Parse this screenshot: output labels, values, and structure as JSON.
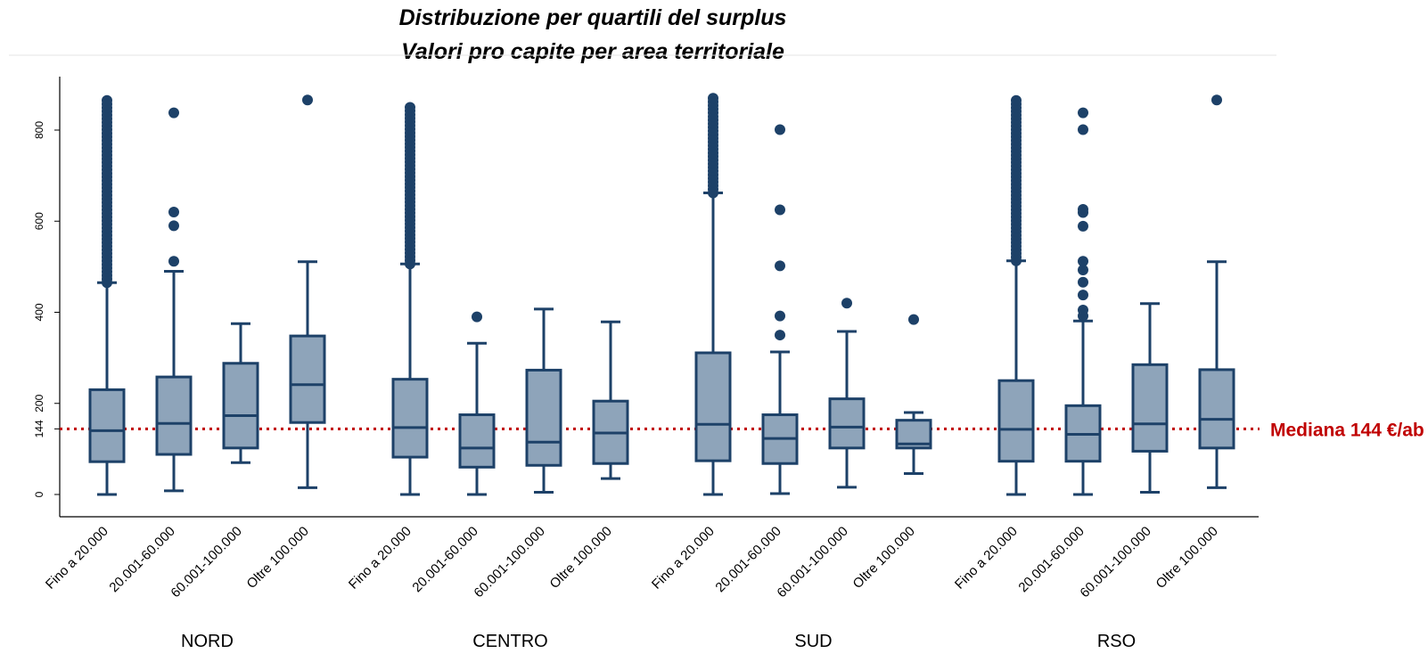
{
  "chart_data": {
    "type": "boxplot",
    "title": "Distribuzione per quartili del surplus",
    "subtitle": "Valori pro capite per area territoriale",
    "y_ticks": [
      0,
      144,
      200,
      400,
      600,
      800
    ],
    "ylim": [
      0,
      870
    ],
    "reference_line": {
      "value": 144,
      "label": "Mediana 144 €/ab"
    },
    "colors": {
      "box_fill": "#8ea4ba",
      "box_stroke": "#1d4168",
      "outlier": "#1d4168",
      "reference": "#c00000"
    },
    "groups": [
      {
        "name": "NORD",
        "boxes": [
          {
            "category": "Fino a 20.000",
            "whisker_low": 0,
            "q1": 72,
            "median": 140,
            "q3": 230,
            "whisker_high": 465,
            "outliers_dense_range": [
              465,
              870
            ],
            "outliers": []
          },
          {
            "category": "20.001-60.000",
            "whisker_low": 8,
            "q1": 88,
            "median": 156,
            "q3": 258,
            "whisker_high": 490,
            "outliers": [
              512,
              590,
              620,
              838
            ]
          },
          {
            "category": "60.001-100.000",
            "whisker_low": 70,
            "q1": 102,
            "median": 173,
            "q3": 288,
            "whisker_high": 375,
            "outliers": []
          },
          {
            "category": "Oltre 100.000",
            "whisker_low": 15,
            "q1": 158,
            "median": 241,
            "q3": 348,
            "whisker_high": 511,
            "outliers": [
              866
            ]
          }
        ]
      },
      {
        "name": "CENTRO",
        "boxes": [
          {
            "category": "Fino a 20.000",
            "whisker_low": 0,
            "q1": 82,
            "median": 147,
            "q3": 253,
            "whisker_high": 506,
            "outliers_dense_range": [
              506,
              850
            ],
            "outliers": []
          },
          {
            "category": "20.001-60.000",
            "whisker_low": 0,
            "q1": 60,
            "median": 102,
            "q3": 175,
            "whisker_high": 332,
            "outliers": [
              390
            ]
          },
          {
            "category": "60.001-100.000",
            "whisker_low": 5,
            "q1": 64,
            "median": 115,
            "q3": 273,
            "whisker_high": 407,
            "outliers": []
          },
          {
            "category": "Oltre 100.000",
            "whisker_low": 35,
            "q1": 68,
            "median": 135,
            "q3": 205,
            "whisker_high": 379,
            "outliers": []
          }
        ]
      },
      {
        "name": "SUD",
        "boxes": [
          {
            "category": "Fino a 20.000",
            "whisker_low": 0,
            "q1": 74,
            "median": 154,
            "q3": 311,
            "whisker_high": 662,
            "outliers_dense_range": [
              662,
              870
            ],
            "outliers": []
          },
          {
            "category": "20.001-60.000",
            "whisker_low": 2,
            "q1": 68,
            "median": 123,
            "q3": 175,
            "whisker_high": 313,
            "outliers": [
              350,
              392,
              502,
              625,
              801
            ]
          },
          {
            "category": "60.001-100.000",
            "whisker_low": 16,
            "q1": 102,
            "median": 148,
            "q3": 210,
            "whisker_high": 358,
            "outliers": [
              420
            ]
          },
          {
            "category": "Oltre 100.000",
            "whisker_low": 46,
            "q1": 102,
            "median": 111,
            "q3": 163,
            "whisker_high": 180,
            "outliers": [
              384
            ]
          }
        ]
      },
      {
        "name": "RSO",
        "boxes": [
          {
            "category": "Fino a 20.000",
            "whisker_low": 0,
            "q1": 73,
            "median": 143,
            "q3": 250,
            "whisker_high": 513,
            "outliers_dense_range": [
              513,
              870
            ],
            "outliers": []
          },
          {
            "category": "20.001-60.000",
            "whisker_low": 0,
            "q1": 73,
            "median": 132,
            "q3": 195,
            "whisker_high": 381,
            "outliers": [
              392,
              405,
              438,
              466,
              493,
              512,
              589,
              619,
              626,
              801,
              838
            ]
          },
          {
            "category": "60.001-100.000",
            "whisker_low": 5,
            "q1": 95,
            "median": 155,
            "q3": 285,
            "whisker_high": 419,
            "outliers": []
          },
          {
            "category": "Oltre 100.000",
            "whisker_low": 15,
            "q1": 102,
            "median": 165,
            "q3": 274,
            "whisker_high": 511,
            "outliers": [
              866
            ]
          }
        ]
      }
    ]
  }
}
